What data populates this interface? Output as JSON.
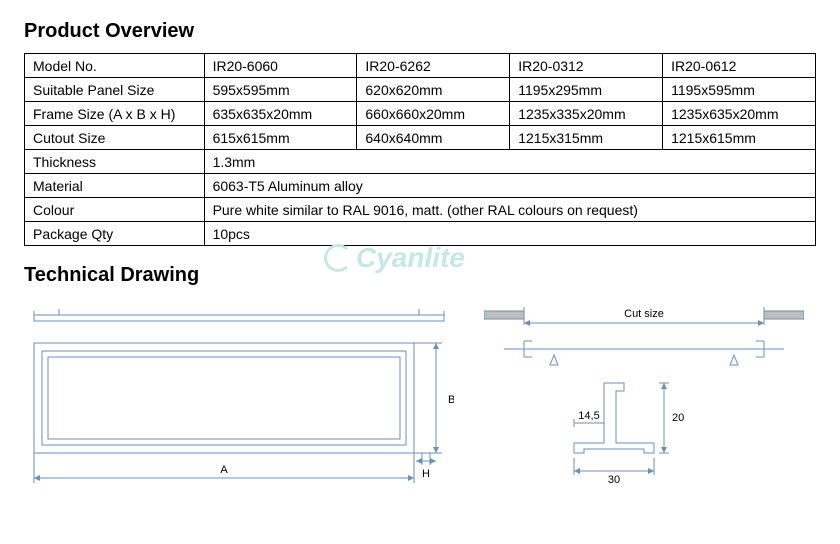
{
  "overview_title": "Product Overview",
  "tech_title": "Technical Drawing",
  "watermark_text": "Cyanlite",
  "table": {
    "rows": [
      {
        "label": "Model No.",
        "v1": "IR20-6060",
        "v2": "IR20-6262",
        "v3": "IR20-0312",
        "v4": "IR20-0612",
        "span": false
      },
      {
        "label": "Suitable Panel Size",
        "v1": "595x595mm",
        "v2": "620x620mm",
        "v3": "1195x295mm",
        "v4": "1195x595mm",
        "span": false
      },
      {
        "label": "Frame Size (A x B x H)",
        "v1": "635x635x20mm",
        "v2": "660x660x20mm",
        "v3": "1235x335x20mm",
        "v4": "1235x635x20mm",
        "span": false
      },
      {
        "label": "Cutout Size",
        "v1": "615x615mm",
        "v2": "640x640mm",
        "v3": "1215x315mm",
        "v4": "1215x615mm",
        "span": false
      },
      {
        "label": "Thickness",
        "v1": "1.3mm",
        "span": true
      },
      {
        "label": "Material",
        "v1": "6063-T5 Aluminum alloy",
        "span": true
      },
      {
        "label": "Colour",
        "v1": "Pure white similar to RAL 9016, matt. (other RAL colours on request)",
        "span": true
      },
      {
        "label": "Package Qty",
        "v1": "10pcs",
        "span": true
      }
    ]
  },
  "drawing": {
    "dim_A": "A",
    "dim_B": "B",
    "dim_H": "H",
    "cut_size_label": "Cut size",
    "profile": {
      "d1": "14,5",
      "d2": "30",
      "d3": "20"
    },
    "line_color": "#6b8fb5",
    "line_width": 1,
    "font_size": 11
  }
}
